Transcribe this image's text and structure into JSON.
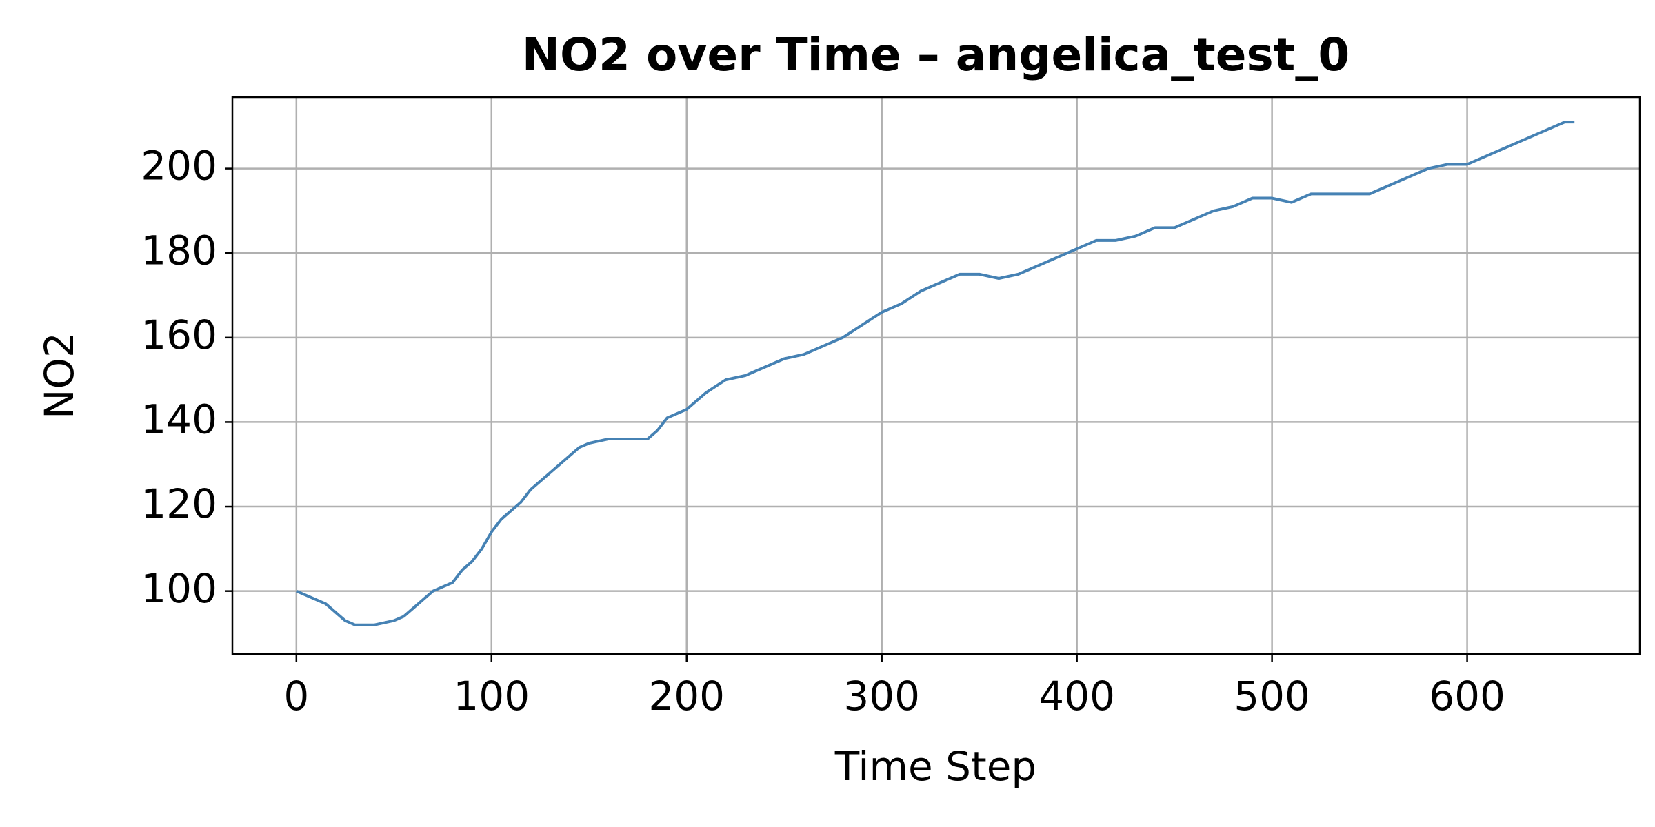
{
  "chart_data": {
    "type": "line",
    "title": "NO2 over Time – angelica_test_0",
    "x_label": "Time Step",
    "y_label": "NO2",
    "x": [
      0,
      5,
      10,
      15,
      20,
      25,
      30,
      40,
      50,
      55,
      60,
      65,
      70,
      75,
      80,
      85,
      90,
      95,
      100,
      105,
      110,
      115,
      120,
      125,
      130,
      135,
      140,
      145,
      150,
      160,
      170,
      180,
      185,
      190,
      200,
      210,
      220,
      230,
      240,
      250,
      260,
      270,
      280,
      290,
      300,
      310,
      320,
      330,
      340,
      350,
      360,
      370,
      380,
      390,
      400,
      410,
      420,
      430,
      440,
      450,
      460,
      470,
      480,
      490,
      500,
      510,
      520,
      530,
      540,
      550,
      560,
      570,
      580,
      590,
      600,
      610,
      620,
      630,
      640,
      650,
      655
    ],
    "series": [
      {
        "name": "NO2",
        "color": "#4682b4",
        "values": [
          100,
          99,
          98,
          97,
          95,
          93,
          92,
          92,
          93,
          94,
          96,
          98,
          100,
          101,
          102,
          105,
          107,
          110,
          114,
          117,
          119,
          121,
          124,
          126,
          128,
          130,
          132,
          134,
          135,
          136,
          136,
          136,
          138,
          141,
          143,
          147,
          150,
          151,
          153,
          155,
          156,
          158,
          160,
          163,
          166,
          168,
          171,
          173,
          175,
          175,
          174,
          175,
          177,
          179,
          181,
          183,
          183,
          184,
          186,
          186,
          188,
          190,
          191,
          193,
          193,
          192,
          194,
          194,
          194,
          194,
          196,
          198,
          200,
          201,
          201,
          203,
          205,
          207,
          209,
          211,
          211
        ]
      }
    ],
    "xlim": [
      -32.8,
      688.5
    ],
    "ylim": [
      85.1,
      216.9
    ],
    "xticks": [
      0,
      100,
      200,
      300,
      400,
      500,
      600
    ],
    "yticks": [
      100,
      120,
      140,
      160,
      180,
      200
    ],
    "grid": true
  }
}
